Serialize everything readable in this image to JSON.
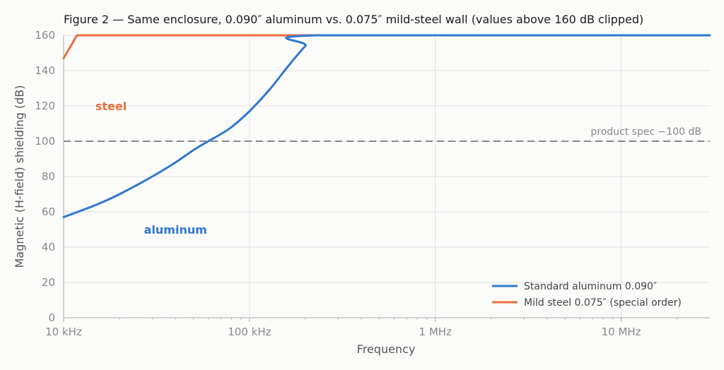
{
  "chart_data": {
    "type": "line",
    "title": "Figure 2 — Same enclosure, 0.090″ aluminum vs. 0.075″ mild-steel wall (values above 160 dB clipped)",
    "xlabel": "Frequency",
    "ylabel": "Magnetic (H-field) shielding (dB)",
    "x_scale": "log",
    "xlim": [
      10000,
      30000000
    ],
    "ylim": [
      0,
      160
    ],
    "x_ticks": [
      {
        "value": 10000,
        "label": "10 kHz"
      },
      {
        "value": 100000,
        "label": "100 kHz"
      },
      {
        "value": 1000000,
        "label": "1 MHz"
      },
      {
        "value": 10000000,
        "label": "10 MHz"
      }
    ],
    "y_ticks": [
      0,
      20,
      40,
      60,
      80,
      100,
      120,
      140,
      160
    ],
    "grid": true,
    "legend_position": "bottom-right",
    "series": [
      {
        "name": "Standard aluminum 0.090″",
        "color": "#2f78d0",
        "x": [
          10000,
          15000,
          20000,
          30000,
          40000,
          50000,
          60000,
          70000,
          80000,
          100000,
          130000,
          160000,
          200000,
          235000,
          30000000
        ],
        "y": [
          57,
          64,
          70,
          80,
          88,
          95,
          100,
          104,
          108,
          117,
          130,
          142,
          154,
          160,
          160
        ]
      },
      {
        "name": "Mild steel 0.075″ (special order)",
        "color": "#e8703c",
        "x": [
          10000,
          11800,
          30000000
        ],
        "y": [
          147,
          160,
          160
        ]
      }
    ],
    "reference_line": {
      "y": 100,
      "label": "product spec −100 dB",
      "color": "#888888"
    },
    "annotations": [
      {
        "text": "steel",
        "x": 18000,
        "y": 120,
        "color": "#e8703c"
      },
      {
        "text": "aluminum",
        "x": 40000,
        "y": 50,
        "color": "#2f78d0"
      }
    ]
  }
}
